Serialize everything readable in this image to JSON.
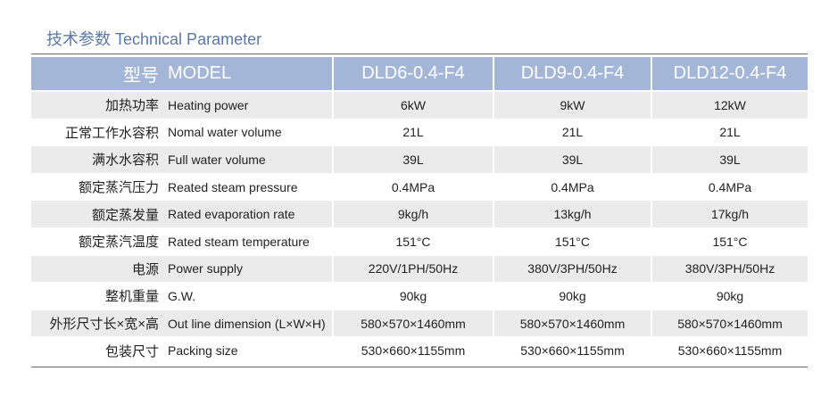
{
  "header": {
    "title_cn": "技术参数",
    "title_en": "Technical Parameter"
  },
  "table": {
    "head": {
      "label_cn": "型号",
      "label_en": "MODEL",
      "models": [
        "DLD6-0.4-F4",
        "DLD9-0.4-F4",
        "DLD12-0.4-F4"
      ]
    },
    "rows": [
      {
        "cn": "加热功率",
        "en": "Heating power",
        "values": [
          "6kW",
          "9kW",
          "12kW"
        ]
      },
      {
        "cn": "正常工作水容积",
        "en": "Nomal water volume",
        "values": [
          "21L",
          "21L",
          "21L"
        ]
      },
      {
        "cn": "满水水容积",
        "en": "Full water volume",
        "values": [
          "39L",
          "39L",
          "39L"
        ]
      },
      {
        "cn": "额定蒸汽压力",
        "en": "Reated steam pressure",
        "values": [
          "0.4MPa",
          "0.4MPa",
          "0.4MPa"
        ]
      },
      {
        "cn": "额定蒸发量",
        "en": "Rated evaporation rate",
        "values": [
          "9kg/h",
          "13kg/h",
          "17kg/h"
        ]
      },
      {
        "cn": "额定蒸汽温度",
        "en": "Rated steam temperature",
        "values": [
          "151°C",
          "151°C",
          "151°C"
        ]
      },
      {
        "cn": "电源",
        "en": "Power supply",
        "values": [
          "220V/1PH/50Hz",
          "380V/3PH/50Hz",
          "380V/3PH/50Hz"
        ]
      },
      {
        "cn": "整机重量",
        "en": "G.W.",
        "values": [
          "90kg",
          "90kg",
          "90kg"
        ]
      },
      {
        "cn": "外形尺寸长×宽×高",
        "en": "Out line dimension (L×W×H)",
        "values": [
          "580×570×1460mm",
          "580×570×1460mm",
          "580×570×1460mm"
        ]
      },
      {
        "cn": "包装尺寸",
        "en": "Packing size",
        "values": [
          "530×660×1155mm",
          "530×660×1155mm",
          "530×660×1155mm"
        ]
      }
    ]
  }
}
